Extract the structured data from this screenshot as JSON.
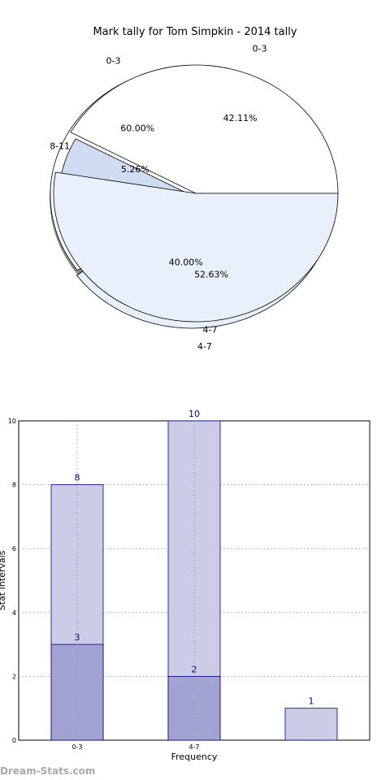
{
  "watermark": "Dream-Stats.com",
  "chart_data": [
    {
      "type": "pie",
      "title": "Mark tally for Tom Simpkin - 2014 tally",
      "rings": [
        {
          "name": "",
          "labels": [
            "0-3",
            "4-7"
          ],
          "values": [
            60.0,
            40.0
          ],
          "percent_labels": [
            "60.00%",
            "40.00%"
          ]
        },
        {
          "name": "",
          "labels": [
            "0-3",
            "8-11",
            "4-7"
          ],
          "values": [
            42.11,
            5.26,
            52.63
          ],
          "percent_labels": [
            "42.11%",
            "5.26%",
            "52.63%"
          ]
        }
      ],
      "colors": {
        "fill_a": "#ffffff",
        "fill_b": "#eaf0fb",
        "fill_c": "#cfdcf2"
      }
    },
    {
      "type": "bar",
      "xlabel": "Frequency",
      "ylabel": "Stat Intervals",
      "categories": [
        "0-3",
        "4-7",
        ""
      ],
      "series": [
        {
          "name": "",
          "values": [
            8,
            10,
            1
          ],
          "color": "#cccce6"
        },
        {
          "name": "",
          "values": [
            3,
            2,
            null
          ],
          "color": "#a3a3d3"
        }
      ],
      "ylim": [
        0,
        10
      ],
      "yticks": [
        0,
        2,
        4,
        6,
        8,
        10
      ],
      "grid": true,
      "label_color": "#000080"
    }
  ]
}
